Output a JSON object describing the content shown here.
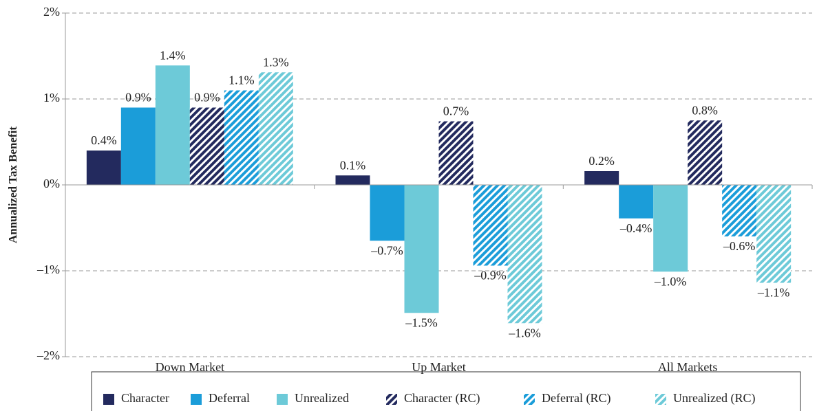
{
  "chart_data": {
    "type": "bar",
    "y_label": "Annualized Tax Benefit",
    "categories": [
      "Down Market",
      "Up Market",
      "All Markets"
    ],
    "series": [
      {
        "name": "Character",
        "color": "#232a5e",
        "pattern": "solid",
        "values": [
          0.4,
          0.11,
          0.16
        ],
        "value_labels": [
          "0.4%",
          "0.1%",
          "0.2%"
        ]
      },
      {
        "name": "Deferral",
        "color": "#1b9dd9",
        "pattern": "solid",
        "values": [
          0.9,
          -0.65,
          -0.39
        ],
        "value_labels": [
          "0.9%",
          "–0.7%",
          "–0.4%"
        ]
      },
      {
        "name": "Unrealized",
        "color": "#6dcad8",
        "pattern": "solid",
        "values": [
          1.39,
          -1.49,
          -1.01
        ],
        "value_labels": [
          "1.4%",
          "–1.5%",
          "–1.0%"
        ]
      },
      {
        "name": "Character (RC)",
        "color": "#232a5e",
        "pattern": "hatched",
        "values": [
          0.9,
          0.74,
          0.75
        ],
        "value_labels": [
          "0.9%",
          "0.7%",
          "0.8%"
        ]
      },
      {
        "name": "Deferral (RC)",
        "color": "#1b9dd9",
        "pattern": "hatched",
        "values": [
          1.1,
          -0.94,
          -0.6
        ],
        "value_labels": [
          "1.1%",
          "–0.9%",
          "–0.6%"
        ]
      },
      {
        "name": "Unrealized (RC)",
        "color": "#6dcad8",
        "pattern": "hatched",
        "values": [
          1.31,
          -1.61,
          -1.14
        ],
        "value_labels": [
          "1.3%",
          "–1.6%",
          "–1.1%"
        ]
      }
    ],
    "ylim": [
      -2,
      2
    ],
    "yticks": [
      {
        "value": -2,
        "label": "–2%"
      },
      {
        "value": -1,
        "label": "–1%"
      },
      {
        "value": 0,
        "label": "0%"
      },
      {
        "value": 1,
        "label": "1%"
      },
      {
        "value": 2,
        "label": "2%"
      }
    ],
    "grid": true,
    "legend": "bottom"
  }
}
